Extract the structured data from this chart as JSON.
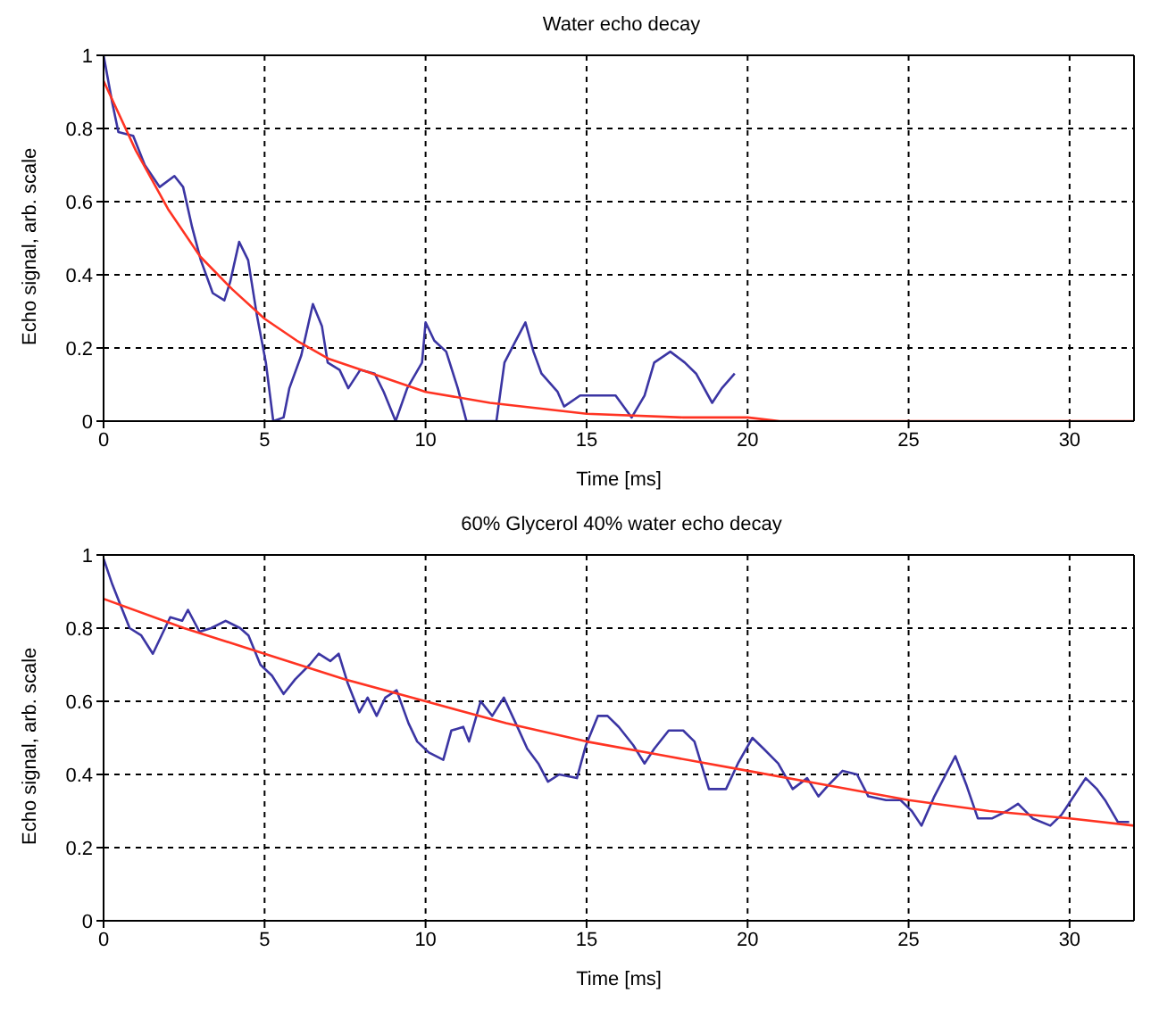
{
  "chart_data": [
    {
      "type": "line",
      "title": "Water echo decay",
      "xlabel": "Time [ms]",
      "ylabel": "Echo signal, arb. scale",
      "xlim": [
        0,
        32
      ],
      "xticks": [
        0,
        5,
        10,
        15,
        20,
        25,
        30
      ],
      "ylim": [
        0,
        1
      ],
      "yticks": [
        0,
        0.2,
        0.4,
        0.6,
        0.8,
        1
      ],
      "grid": true,
      "series": [
        {
          "color": "#3b35a3",
          "x": [
            0,
            0.27,
            0.46,
            0.92,
            1.28,
            1.74,
            2.2,
            2.47,
            2.75,
            3.02,
            3.39,
            3.75,
            3.93,
            4.21,
            4.49,
            4.76,
            5.04,
            5.27,
            5.59,
            5.77,
            6.14,
            6.5,
            6.78,
            6.96,
            7.33,
            7.6,
            7.97,
            8.42,
            8.7,
            9.07,
            9.43,
            9.89,
            10,
            10.27,
            10.64,
            11,
            11.27,
            12.2,
            12.45,
            12.8,
            13.1,
            13.35,
            13.6,
            14.1,
            14.3,
            14.8,
            15.35,
            15.9,
            16.4,
            16.8,
            17.1,
            17.6,
            18.05,
            18.4,
            18.9,
            19.2,
            19.6
          ],
          "values": [
            1,
            0.87,
            0.79,
            0.78,
            0.7,
            0.64,
            0.67,
            0.64,
            0.53,
            0.44,
            0.35,
            0.33,
            0.38,
            0.49,
            0.44,
            0.29,
            0.16,
            0,
            0.01,
            0.09,
            0.18,
            0.32,
            0.26,
            0.16,
            0.14,
            0.09,
            0.14,
            0.13,
            0.08,
            0,
            0.09,
            0.16,
            0.27,
            0.22,
            0.19,
            0.09,
            0,
            0,
            0.16,
            0.22,
            0.27,
            0.19,
            0.13,
            0.08,
            0.04,
            0.07,
            0.07,
            0.07,
            0.01,
            0.07,
            0.16,
            0.19,
            0.16,
            0.13,
            0.05,
            0.09,
            0.13
          ]
        },
        {
          "color": "#ff3322",
          "x": [
            0,
            1,
            2,
            3,
            4,
            5,
            6,
            7,
            8,
            10,
            12,
            15,
            18,
            20,
            21,
            32
          ],
          "values": [
            0.93,
            0.74,
            0.58,
            0.45,
            0.36,
            0.28,
            0.22,
            0.17,
            0.14,
            0.08,
            0.05,
            0.02,
            0.01,
            0.01,
            0,
            0
          ]
        }
      ]
    },
    {
      "type": "line",
      "title": "60% Glycerol 40% water echo decay",
      "xlabel": "Time [ms]",
      "ylabel": "Echo signal, arb. scale",
      "xlim": [
        0,
        32
      ],
      "xticks": [
        0,
        5,
        10,
        15,
        20,
        25,
        30
      ],
      "ylim": [
        0,
        1
      ],
      "yticks": [
        0,
        0.2,
        0.4,
        0.6,
        0.8,
        1
      ],
      "grid": true,
      "series": [
        {
          "color": "#3b35a3",
          "x": [
            0,
            0.27,
            0.54,
            0.81,
            1.17,
            1.53,
            1.8,
            2.07,
            2.44,
            2.62,
            2.98,
            3.34,
            3.79,
            4.24,
            4.5,
            4.87,
            5.23,
            5.59,
            5.95,
            6.4,
            6.68,
            7.04,
            7.3,
            7.58,
            7.94,
            8.2,
            8.48,
            8.75,
            9.1,
            9.47,
            9.74,
            10.1,
            10.55,
            10.8,
            11.17,
            11.35,
            11.71,
            12.07,
            12.43,
            12.8,
            13.16,
            13.5,
            13.8,
            14.15,
            14.7,
            14.98,
            15.35,
            15.65,
            16,
            16.45,
            16.8,
            17.1,
            17.55,
            18,
            18.35,
            18.8,
            19.33,
            19.7,
            20.15,
            20.5,
            20.95,
            21.4,
            21.85,
            22.2,
            22.5,
            22.95,
            23.4,
            23.75,
            24.3,
            24.75,
            25.1,
            25.4,
            25.8,
            26.45,
            26.8,
            27.15,
            27.6,
            28.05,
            28.4,
            28.85,
            29.4,
            29.75,
            30.05,
            30.5,
            30.85,
            31.1,
            31.5,
            31.85
          ],
          "values": [
            0.99,
            0.92,
            0.86,
            0.8,
            0.78,
            0.73,
            0.78,
            0.83,
            0.82,
            0.85,
            0.79,
            0.8,
            0.82,
            0.8,
            0.78,
            0.7,
            0.67,
            0.62,
            0.66,
            0.7,
            0.73,
            0.71,
            0.73,
            0.65,
            0.57,
            0.61,
            0.56,
            0.61,
            0.63,
            0.54,
            0.49,
            0.46,
            0.44,
            0.52,
            0.53,
            0.49,
            0.6,
            0.56,
            0.61,
            0.54,
            0.47,
            0.43,
            0.38,
            0.4,
            0.39,
            0.48,
            0.56,
            0.56,
            0.53,
            0.48,
            0.43,
            0.47,
            0.52,
            0.52,
            0.49,
            0.36,
            0.36,
            0.43,
            0.5,
            0.47,
            0.43,
            0.36,
            0.39,
            0.34,
            0.37,
            0.41,
            0.4,
            0.34,
            0.33,
            0.33,
            0.3,
            0.26,
            0.34,
            0.45,
            0.37,
            0.28,
            0.28,
            0.3,
            0.32,
            0.28,
            0.26,
            0.29,
            0.33,
            0.39,
            0.36,
            0.33,
            0.27,
            0.27
          ]
        },
        {
          "color": "#ff3322",
          "x": [
            0,
            2.5,
            5,
            7.5,
            10,
            12.5,
            15,
            17.5,
            20,
            22.5,
            25,
            27.5,
            30,
            32
          ],
          "values": [
            0.88,
            0.8,
            0.73,
            0.66,
            0.6,
            0.54,
            0.49,
            0.45,
            0.41,
            0.37,
            0.33,
            0.3,
            0.28,
            0.26
          ]
        }
      ]
    }
  ]
}
